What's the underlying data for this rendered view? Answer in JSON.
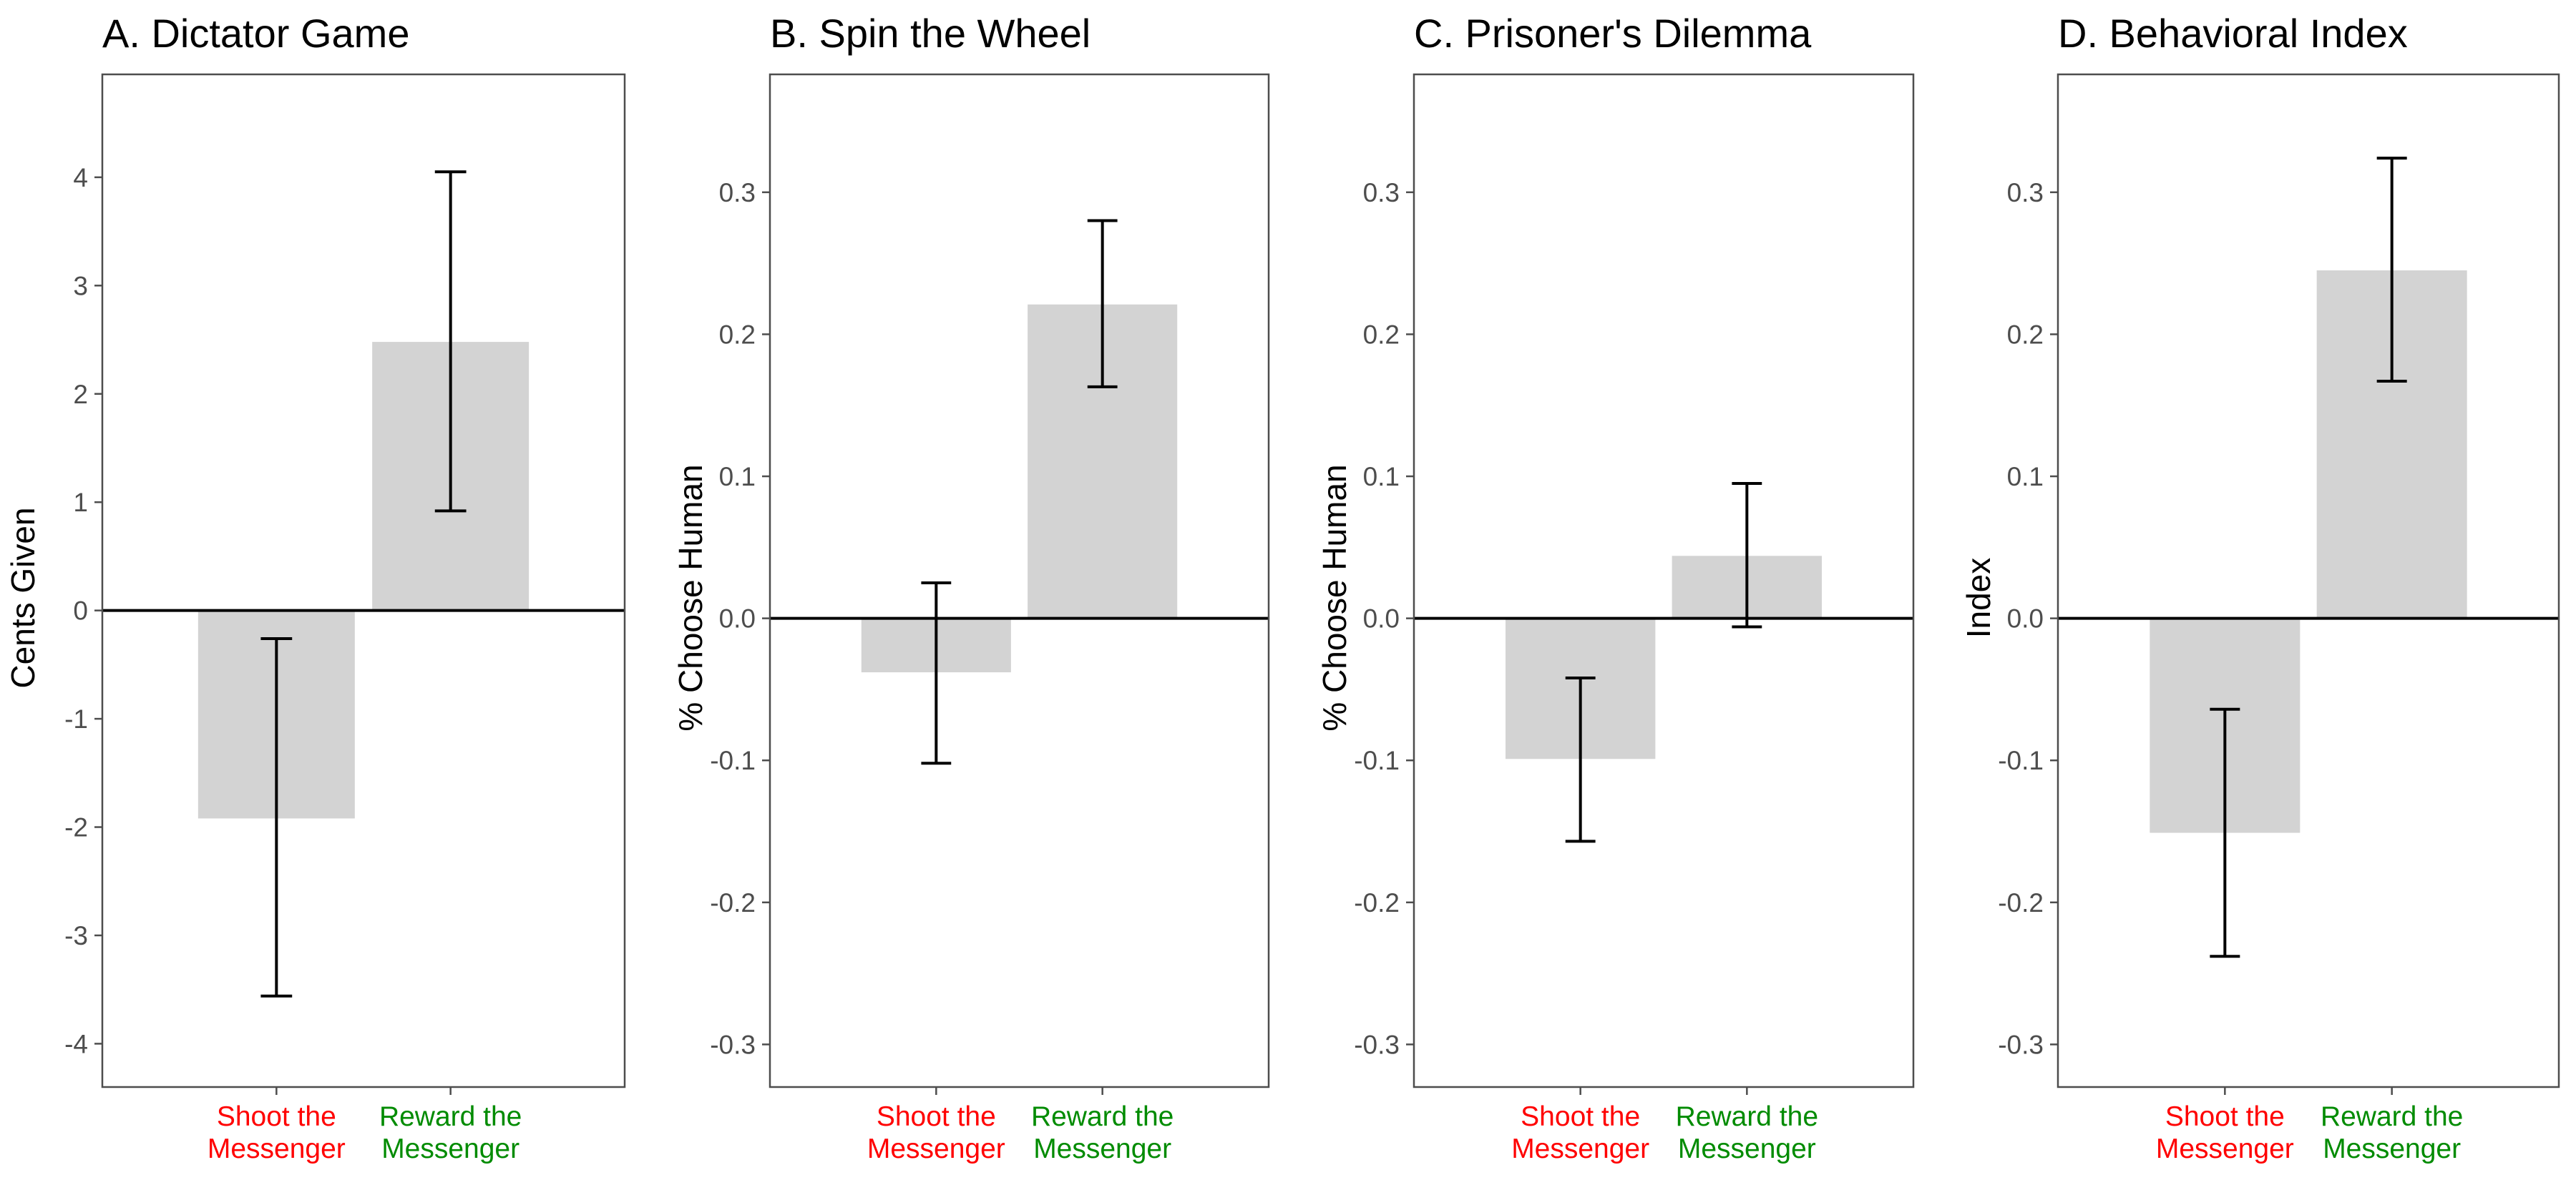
{
  "colors": {
    "bar": "#d3d3d3",
    "shoot": "#ff0000",
    "reward": "#008b00",
    "frame": "#4d4d4d",
    "errorbar": "#000000",
    "zeroline": "#000000"
  },
  "chart_data": [
    {
      "type": "bar",
      "title": "A. Dictator Game",
      "ylabel": "Cents Given",
      "ylim": [
        -4.4,
        4.95
      ],
      "yticks": [
        -4,
        -3,
        -2,
        -1,
        0,
        1,
        2,
        3,
        4
      ],
      "ytick_labels": [
        "-4",
        "-3",
        "-2",
        "-1",
        "0",
        "1",
        "2",
        "3",
        "4"
      ],
      "categories": [
        {
          "line1": "Shoot the",
          "line2": "Messenger",
          "color_key": "shoot"
        },
        {
          "line1": "Reward the",
          "line2": "Messenger",
          "color_key": "reward"
        }
      ],
      "values": [
        -1.92,
        2.48
      ],
      "error_low": [
        -3.56,
        0.92
      ],
      "error_high": [
        -0.26,
        4.05
      ],
      "grid": false,
      "zero_line": true
    },
    {
      "type": "bar",
      "title": "B. Spin the Wheel",
      "ylabel": "% Choose Human",
      "ylim": [
        -0.33,
        0.383
      ],
      "yticks": [
        -0.3,
        -0.2,
        -0.1,
        0.0,
        0.1,
        0.2,
        0.3
      ],
      "ytick_labels": [
        "-0.3",
        "-0.2",
        "-0.1",
        "0.0",
        "0.1",
        "0.2",
        "0.3"
      ],
      "categories": [
        {
          "line1": "Shoot the",
          "line2": "Messenger",
          "color_key": "shoot"
        },
        {
          "line1": "Reward the",
          "line2": "Messenger",
          "color_key": "reward"
        }
      ],
      "values": [
        -0.038,
        0.221
      ],
      "error_low": [
        -0.102,
        0.163
      ],
      "error_high": [
        0.025,
        0.28
      ],
      "grid": false,
      "zero_line": true
    },
    {
      "type": "bar",
      "title": "C. Prisoner's Dilemma",
      "ylabel": "% Choose Human",
      "ylim": [
        -0.33,
        0.383
      ],
      "yticks": [
        -0.3,
        -0.2,
        -0.1,
        0.0,
        0.1,
        0.2,
        0.3
      ],
      "ytick_labels": [
        "-0.3",
        "-0.2",
        "-0.1",
        "0.0",
        "0.1",
        "0.2",
        "0.3"
      ],
      "categories": [
        {
          "line1": "Shoot the",
          "line2": "Messenger",
          "color_key": "shoot"
        },
        {
          "line1": "Reward the",
          "line2": "Messenger",
          "color_key": "reward"
        }
      ],
      "values": [
        -0.099,
        0.044
      ],
      "error_low": [
        -0.157,
        -0.006
      ],
      "error_high": [
        -0.042,
        0.095
      ],
      "grid": false,
      "zero_line": true
    },
    {
      "type": "bar",
      "title": "D. Behavioral Index",
      "ylabel": "Index",
      "ylim": [
        -0.33,
        0.383
      ],
      "yticks": [
        -0.3,
        -0.2,
        -0.1,
        0.0,
        0.1,
        0.2,
        0.3
      ],
      "ytick_labels": [
        "-0.3",
        "-0.2",
        "-0.1",
        "0.0",
        "0.1",
        "0.2",
        "0.3"
      ],
      "categories": [
        {
          "line1": "Shoot the",
          "line2": "Messenger",
          "color_key": "shoot"
        },
        {
          "line1": "Reward the",
          "line2": "Messenger",
          "color_key": "reward"
        }
      ],
      "values": [
        -0.151,
        0.245
      ],
      "error_low": [
        -0.238,
        0.167
      ],
      "error_high": [
        -0.064,
        0.324
      ],
      "grid": false,
      "zero_line": true
    }
  ]
}
